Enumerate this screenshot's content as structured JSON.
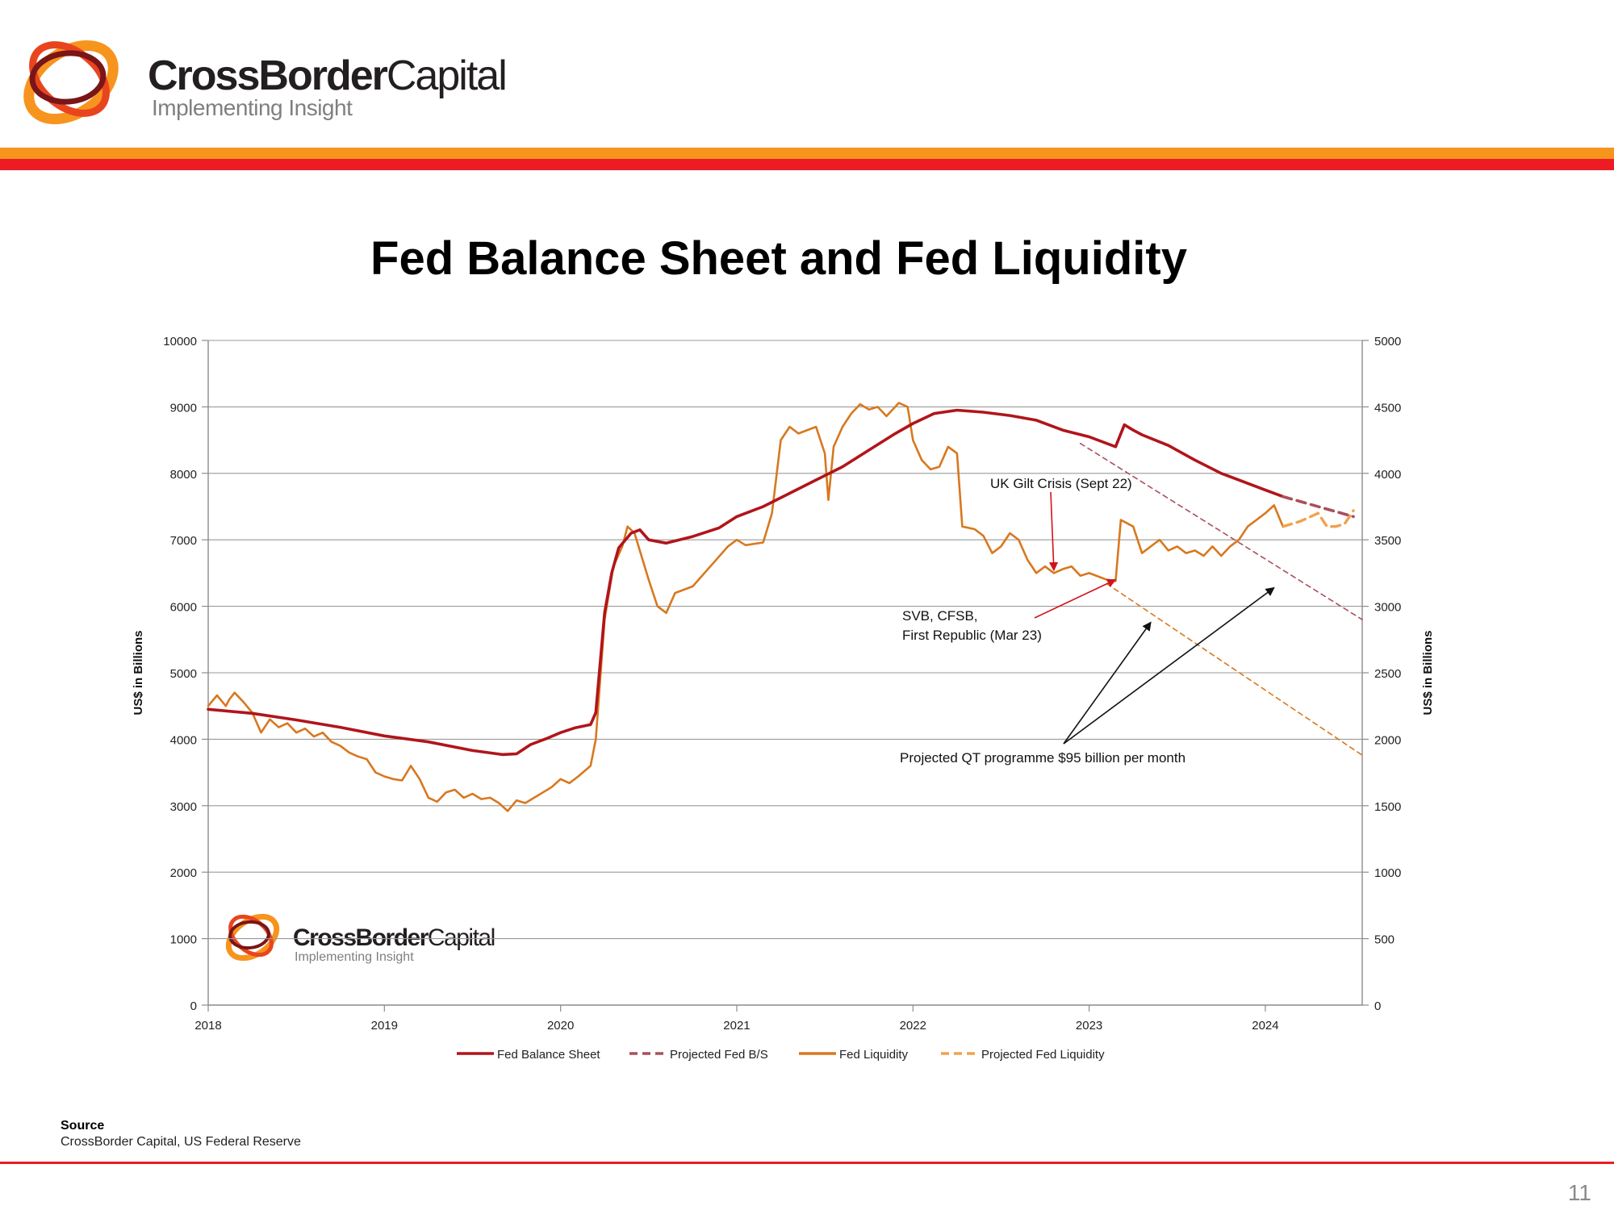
{
  "header": {
    "brand_bold": "CrossBorder",
    "brand_light": "Capital",
    "tagline": "Implementing Insight"
  },
  "title": "Fed Balance Sheet and Fed Liquidity",
  "colors": {
    "fed_balance_sheet": "#b0151b",
    "projected_fed_bs": "#a9505c",
    "fed_liquidity": "#d8781f",
    "projected_fed_liquidity": "#f0a24e",
    "accent_orange": "#f7941d",
    "accent_red": "#ed1c24"
  },
  "chart_data": {
    "type": "line",
    "ylabel": "US$ in Billions",
    "y2label": "US$ in Billions",
    "ylim": [
      0,
      10000
    ],
    "y2lim": [
      0,
      5000
    ],
    "yticks": [
      "0",
      "1000",
      "2000",
      "3000",
      "4000",
      "5000",
      "6000",
      "7000",
      "8000",
      "9000",
      "10000"
    ],
    "y2ticks": [
      "0",
      "500",
      "1000",
      "1500",
      "2000",
      "2500",
      "3000",
      "3500",
      "4000",
      "4500",
      "5000"
    ],
    "xlim": [
      2018.0,
      2024.55
    ],
    "xticks": [
      "2018",
      "2019",
      "2020",
      "2021",
      "2022",
      "2023",
      "2024"
    ],
    "grid": true,
    "legend_position": "bottom",
    "series": [
      {
        "name": "Fed Balance Sheet",
        "axis": "left",
        "style": "solid",
        "points": [
          [
            2018.0,
            4450
          ],
          [
            2018.25,
            4390
          ],
          [
            2018.5,
            4290
          ],
          [
            2018.75,
            4180
          ],
          [
            2019.0,
            4050
          ],
          [
            2019.25,
            3960
          ],
          [
            2019.5,
            3830
          ],
          [
            2019.67,
            3770
          ],
          [
            2019.75,
            3780
          ],
          [
            2019.83,
            3920
          ],
          [
            2019.92,
            4010
          ],
          [
            2020.0,
            4100
          ],
          [
            2020.08,
            4170
          ],
          [
            2020.17,
            4220
          ],
          [
            2020.2,
            4400
          ],
          [
            2020.25,
            5900
          ],
          [
            2020.29,
            6500
          ],
          [
            2020.33,
            6880
          ],
          [
            2020.4,
            7100
          ],
          [
            2020.45,
            7150
          ],
          [
            2020.5,
            7000
          ],
          [
            2020.6,
            6950
          ],
          [
            2020.75,
            7050
          ],
          [
            2020.9,
            7180
          ],
          [
            2021.0,
            7350
          ],
          [
            2021.15,
            7500
          ],
          [
            2021.3,
            7700
          ],
          [
            2021.45,
            7900
          ],
          [
            2021.6,
            8100
          ],
          [
            2021.75,
            8350
          ],
          [
            2021.9,
            8600
          ],
          [
            2022.0,
            8750
          ],
          [
            2022.12,
            8900
          ],
          [
            2022.25,
            8950
          ],
          [
            2022.4,
            8920
          ],
          [
            2022.55,
            8870
          ],
          [
            2022.7,
            8800
          ],
          [
            2022.85,
            8650
          ],
          [
            2023.0,
            8550
          ],
          [
            2023.15,
            8400
          ],
          [
            2023.2,
            8730
          ],
          [
            2023.25,
            8650
          ],
          [
            2023.3,
            8580
          ],
          [
            2023.45,
            8420
          ],
          [
            2023.6,
            8200
          ],
          [
            2023.75,
            8000
          ],
          [
            2023.9,
            7850
          ],
          [
            2024.0,
            7750
          ],
          [
            2024.1,
            7650
          ]
        ]
      },
      {
        "name": "Projected Fed B/S",
        "axis": "left",
        "style": "dashed",
        "points": [
          [
            2024.1,
            7650
          ],
          [
            2024.5,
            7350
          ]
        ]
      },
      {
        "name": "Fed Liquidity",
        "axis": "right",
        "style": "solid",
        "points": [
          [
            2018.0,
            2250
          ],
          [
            2018.05,
            2330
          ],
          [
            2018.1,
            2250
          ],
          [
            2018.12,
            2300
          ],
          [
            2018.15,
            2350
          ],
          [
            2018.2,
            2280
          ],
          [
            2018.25,
            2200
          ],
          [
            2018.3,
            2050
          ],
          [
            2018.35,
            2150
          ],
          [
            2018.4,
            2090
          ],
          [
            2018.45,
            2120
          ],
          [
            2018.5,
            2050
          ],
          [
            2018.55,
            2080
          ],
          [
            2018.6,
            2020
          ],
          [
            2018.65,
            2050
          ],
          [
            2018.7,
            1980
          ],
          [
            2018.75,
            1950
          ],
          [
            2018.8,
            1900
          ],
          [
            2018.85,
            1870
          ],
          [
            2018.9,
            1850
          ],
          [
            2018.95,
            1750
          ],
          [
            2019.0,
            1720
          ],
          [
            2019.05,
            1700
          ],
          [
            2019.1,
            1690
          ],
          [
            2019.15,
            1800
          ],
          [
            2019.2,
            1700
          ],
          [
            2019.25,
            1560
          ],
          [
            2019.3,
            1530
          ],
          [
            2019.35,
            1600
          ],
          [
            2019.4,
            1620
          ],
          [
            2019.45,
            1560
          ],
          [
            2019.5,
            1590
          ],
          [
            2019.55,
            1550
          ],
          [
            2019.6,
            1560
          ],
          [
            2019.65,
            1520
          ],
          [
            2019.7,
            1460
          ],
          [
            2019.75,
            1540
          ],
          [
            2019.8,
            1520
          ],
          [
            2019.85,
            1560
          ],
          [
            2019.9,
            1600
          ],
          [
            2019.95,
            1640
          ],
          [
            2020.0,
            1700
          ],
          [
            2020.05,
            1670
          ],
          [
            2020.1,
            1720
          ],
          [
            2020.17,
            1800
          ],
          [
            2020.2,
            2000
          ],
          [
            2020.25,
            2900
          ],
          [
            2020.3,
            3300
          ],
          [
            2020.35,
            3450
          ],
          [
            2020.38,
            3600
          ],
          [
            2020.42,
            3550
          ],
          [
            2020.5,
            3200
          ],
          [
            2020.55,
            3000
          ],
          [
            2020.6,
            2950
          ],
          [
            2020.65,
            3100
          ],
          [
            2020.75,
            3150
          ],
          [
            2020.85,
            3300
          ],
          [
            2020.95,
            3450
          ],
          [
            2021.0,
            3500
          ],
          [
            2021.05,
            3460
          ],
          [
            2021.15,
            3480
          ],
          [
            2021.2,
            3700
          ],
          [
            2021.25,
            4250
          ],
          [
            2021.3,
            4350
          ],
          [
            2021.35,
            4300
          ],
          [
            2021.45,
            4350
          ],
          [
            2021.5,
            4150
          ],
          [
            2021.52,
            3800
          ],
          [
            2021.55,
            4200
          ],
          [
            2021.6,
            4350
          ],
          [
            2021.65,
            4450
          ],
          [
            2021.7,
            4520
          ],
          [
            2021.75,
            4480
          ],
          [
            2021.8,
            4500
          ],
          [
            2021.85,
            4430
          ],
          [
            2021.92,
            4530
          ],
          [
            2021.97,
            4500
          ],
          [
            2022.0,
            4250
          ],
          [
            2022.05,
            4100
          ],
          [
            2022.1,
            4030
          ],
          [
            2022.15,
            4050
          ],
          [
            2022.2,
            4200
          ],
          [
            2022.25,
            4150
          ],
          [
            2022.28,
            3600
          ],
          [
            2022.35,
            3580
          ],
          [
            2022.4,
            3530
          ],
          [
            2022.45,
            3400
          ],
          [
            2022.5,
            3450
          ],
          [
            2022.55,
            3550
          ],
          [
            2022.6,
            3500
          ],
          [
            2022.65,
            3350
          ],
          [
            2022.7,
            3250
          ],
          [
            2022.75,
            3300
          ],
          [
            2022.8,
            3250
          ],
          [
            2022.85,
            3280
          ],
          [
            2022.9,
            3300
          ],
          [
            2022.95,
            3230
          ],
          [
            2023.0,
            3250
          ],
          [
            2023.1,
            3200
          ],
          [
            2023.15,
            3190
          ],
          [
            2023.18,
            3650
          ],
          [
            2023.25,
            3600
          ],
          [
            2023.3,
            3400
          ],
          [
            2023.35,
            3450
          ],
          [
            2023.4,
            3500
          ],
          [
            2023.45,
            3420
          ],
          [
            2023.5,
            3450
          ],
          [
            2023.55,
            3400
          ],
          [
            2023.6,
            3420
          ],
          [
            2023.65,
            3380
          ],
          [
            2023.7,
            3450
          ],
          [
            2023.75,
            3380
          ],
          [
            2023.8,
            3450
          ],
          [
            2023.85,
            3500
          ],
          [
            2023.9,
            3600
          ],
          [
            2023.95,
            3650
          ],
          [
            2024.0,
            3700
          ],
          [
            2024.05,
            3760
          ],
          [
            2024.1,
            3600
          ]
        ]
      },
      {
        "name": "Projected Fed Liquidity",
        "axis": "right",
        "style": "dashed",
        "points": [
          [
            2024.1,
            3600
          ],
          [
            2024.2,
            3640
          ],
          [
            2024.3,
            3700
          ],
          [
            2024.35,
            3600
          ],
          [
            2024.4,
            3600
          ],
          [
            2024.45,
            3620
          ],
          [
            2024.5,
            3720
          ]
        ]
      },
      {
        "name": "Projected QT programme (balance sheet)",
        "axis": "left",
        "style": "thin-dashed",
        "legend": false,
        "points": [
          [
            2022.95,
            8450
          ],
          [
            2024.55,
            5800
          ]
        ]
      },
      {
        "name": "Projected QT programme (liquidity)",
        "axis": "right",
        "style": "thin-dashed",
        "legend": false,
        "points": [
          [
            2023.1,
            3170
          ],
          [
            2024.55,
            1880
          ]
        ]
      }
    ],
    "annotations": [
      {
        "lines": [
          "UK Gilt Crisis (Sept 22)"
        ],
        "arrows": [
          [
            2022.8,
            3270
          ]
        ]
      },
      {
        "lines": [
          "SVB, CFSB,",
          "First Republic (Mar 23)"
        ],
        "arrows": [
          [
            2023.15,
            3200
          ]
        ]
      },
      {
        "lines": [
          "Projected QT programme $95 billion per month"
        ],
        "arrows": [
          [
            2023.35,
            2880
          ],
          [
            2024.05,
            3140
          ]
        ]
      }
    ]
  },
  "watermark": {
    "brand_bold": "CrossBorder",
    "brand_light": "Capital",
    "tagline": "Implementing Insight"
  },
  "source": {
    "label": "Source",
    "text": "CrossBorder Capital, US Federal Reserve"
  },
  "page_number": "11"
}
